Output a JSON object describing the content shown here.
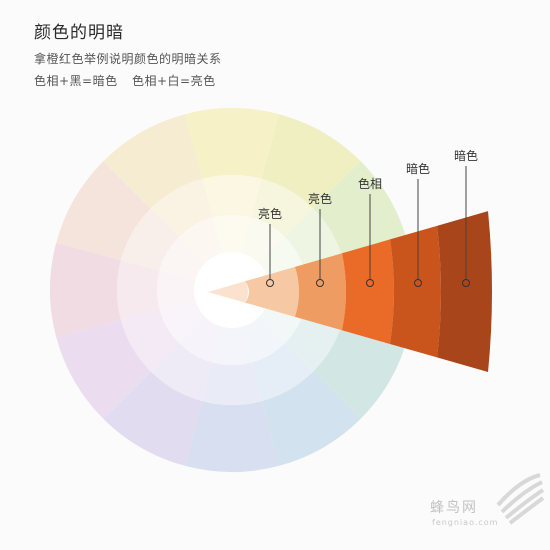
{
  "header": {
    "title": "颜色的明暗",
    "subtitle": "拿橙红色举例说明颜色的明暗关系",
    "formula_dark": "色相+黑=暗色",
    "formula_light": "色相+白=亮色"
  },
  "wedge": {
    "labels": [
      "亮色",
      "亮色",
      "色相",
      "暗色",
      "暗色"
    ],
    "colors": [
      "#fbe2cf",
      "#f6c8a3",
      "#ef9c62",
      "#ea6a28",
      "#c9541c",
      "#a8451a"
    ]
  },
  "wheel": {
    "segment_count": 12,
    "outer_colors": [
      "#f7f1c8",
      "#efefc2",
      "#e2eecc",
      "#d6ebd6",
      "#d2e6e4",
      "#d2e2ee",
      "#d8dff0",
      "#e1dcf0",
      "#ebdcef",
      "#f1dce4",
      "#f4e4dc",
      "#f6ecd2"
    ],
    "mid_colors": [
      "#fbf7e2",
      "#f6f6df",
      "#eef5e3",
      "#e8f3e8",
      "#e5f1f0",
      "#e5eef6",
      "#e9ecf6",
      "#eeeaf6",
      "#f3eaf5",
      "#f7eaef",
      "#f8efea",
      "#faf3e4"
    ],
    "inner_colors": [
      "#fdfbf0",
      "#fbfaf0",
      "#f6faf1",
      "#f3f9f3",
      "#f2f8f7",
      "#f2f6fa",
      "#f4f5fa",
      "#f6f4fa",
      "#f8f4fa",
      "#faf4f6",
      "#fbf6f3",
      "#fcf8f1"
    ]
  },
  "watermark": {
    "text": "蜂鸟网",
    "url": "fengniao.com"
  }
}
